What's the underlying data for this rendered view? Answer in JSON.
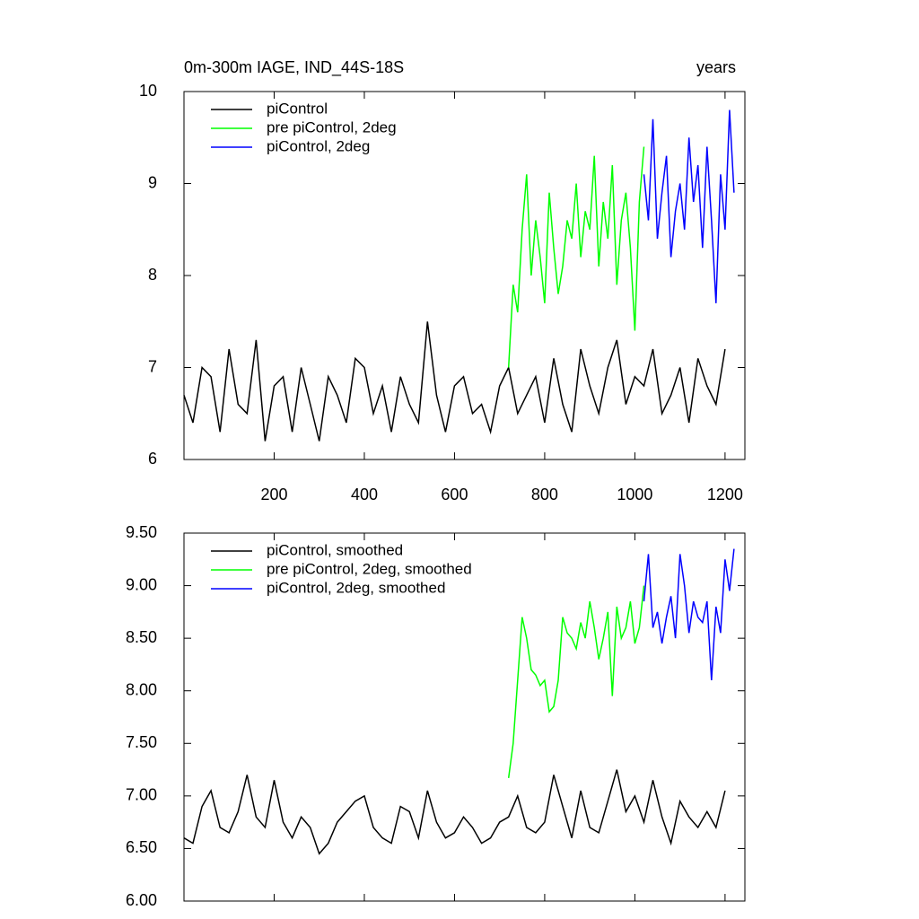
{
  "chart_data": [
    {
      "type": "line",
      "title": "0m-300m IAGE, IND_44S-18S",
      "right_title": "years",
      "xlim": [
        0,
        1244
      ],
      "xticks": [
        200,
        400,
        600,
        800,
        1000,
        1200
      ],
      "ylim": [
        6,
        10
      ],
      "yticks": [
        6,
        7,
        8,
        9,
        10
      ],
      "legend": "top-left",
      "series": [
        {
          "name": "piControl",
          "color": "#000000",
          "x": [
            0,
            20,
            40,
            60,
            80,
            100,
            120,
            140,
            160,
            180,
            200,
            220,
            240,
            260,
            280,
            300,
            320,
            340,
            360,
            380,
            400,
            420,
            440,
            460,
            480,
            500,
            520,
            540,
            560,
            580,
            600,
            620,
            640,
            660,
            680,
            700,
            720,
            740,
            760,
            780,
            800,
            820,
            840,
            860,
            880,
            900,
            920,
            940,
            960,
            980,
            1000,
            1020,
            1040,
            1060,
            1080,
            1100,
            1120,
            1140,
            1160,
            1180,
            1200
          ],
          "values": [
            6.7,
            6.4,
            7.0,
            6.9,
            6.3,
            7.2,
            6.6,
            6.5,
            7.3,
            6.2,
            6.8,
            6.9,
            6.3,
            7.0,
            6.6,
            6.2,
            6.9,
            6.7,
            6.4,
            7.1,
            7.0,
            6.5,
            6.8,
            6.3,
            6.9,
            6.6,
            6.4,
            7.5,
            6.7,
            6.3,
            6.8,
            6.9,
            6.5,
            6.6,
            6.3,
            6.8,
            7.0,
            6.5,
            6.7,
            6.9,
            6.4,
            7.1,
            6.6,
            6.3,
            7.2,
            6.8,
            6.5,
            7.0,
            7.3,
            6.6,
            6.9,
            6.8,
            7.2,
            6.5,
            6.7,
            7.0,
            6.4,
            7.1,
            6.8,
            6.6,
            7.2
          ]
        },
        {
          "name": "pre piControl, 2deg",
          "color": "#00ff00",
          "x": [
            720,
            730,
            740,
            750,
            760,
            770,
            780,
            790,
            800,
            810,
            820,
            830,
            840,
            850,
            860,
            870,
            880,
            890,
            900,
            910,
            920,
            930,
            940,
            950,
            960,
            970,
            980,
            990,
            1000,
            1010,
            1020
          ],
          "values": [
            7.0,
            7.9,
            7.6,
            8.5,
            9.1,
            8.0,
            8.6,
            8.2,
            7.7,
            8.9,
            8.3,
            7.8,
            8.1,
            8.6,
            8.4,
            9.0,
            8.2,
            8.7,
            8.5,
            9.3,
            8.1,
            8.8,
            8.4,
            9.2,
            7.9,
            8.6,
            8.9,
            8.3,
            7.4,
            8.8,
            9.4
          ]
        },
        {
          "name": "piControl, 2deg",
          "color": "#0000ff",
          "x": [
            1020,
            1030,
            1040,
            1050,
            1060,
            1070,
            1080,
            1090,
            1100,
            1110,
            1120,
            1130,
            1140,
            1150,
            1160,
            1170,
            1180,
            1190,
            1200,
            1210,
            1220
          ],
          "values": [
            9.1,
            8.6,
            9.7,
            8.4,
            8.9,
            9.3,
            8.2,
            8.7,
            9.0,
            8.5,
            9.5,
            8.8,
            9.2,
            8.3,
            9.4,
            8.6,
            7.7,
            9.1,
            8.5,
            9.8,
            8.9
          ]
        }
      ]
    },
    {
      "type": "line",
      "xlim": [
        0,
        1244
      ],
      "xticks": [
        200,
        400,
        600,
        800,
        1000,
        1200
      ],
      "ylim": [
        6,
        9.5
      ],
      "yticks": [
        {
          "value": 6,
          "label": "6.00"
        },
        {
          "value": 6.5,
          "label": "6.50"
        },
        {
          "value": 7,
          "label": "7.00"
        },
        {
          "value": 7.5,
          "label": "7.50"
        },
        {
          "value": 8,
          "label": "8.00"
        },
        {
          "value": 8.5,
          "label": "8.50"
        },
        {
          "value": 9,
          "label": "9.00"
        },
        {
          "value": 9.5,
          "label": "9.50"
        }
      ],
      "legend": "top-left",
      "series": [
        {
          "name": "piControl, smoothed",
          "color": "#000000",
          "x": [
            0,
            20,
            40,
            60,
            80,
            100,
            120,
            140,
            160,
            180,
            200,
            220,
            240,
            260,
            280,
            300,
            320,
            340,
            360,
            380,
            400,
            420,
            440,
            460,
            480,
            500,
            520,
            540,
            560,
            580,
            600,
            620,
            640,
            660,
            680,
            700,
            720,
            740,
            760,
            780,
            800,
            820,
            840,
            860,
            880,
            900,
            920,
            940,
            960,
            980,
            1000,
            1020,
            1040,
            1060,
            1080,
            1100,
            1120,
            1140,
            1160,
            1180,
            1200
          ],
          "values": [
            6.6,
            6.55,
            6.9,
            7.05,
            6.7,
            6.65,
            6.85,
            7.2,
            6.8,
            6.7,
            7.15,
            6.75,
            6.6,
            6.8,
            6.7,
            6.45,
            6.55,
            6.75,
            6.85,
            6.95,
            7.0,
            6.7,
            6.6,
            6.55,
            6.9,
            6.85,
            6.6,
            7.05,
            6.75,
            6.6,
            6.65,
            6.8,
            6.7,
            6.55,
            6.6,
            6.75,
            6.8,
            7.0,
            6.7,
            6.65,
            6.75,
            7.2,
            6.9,
            6.6,
            7.05,
            6.7,
            6.65,
            6.95,
            7.25,
            6.85,
            7.0,
            6.75,
            7.15,
            6.8,
            6.55,
            6.95,
            6.8,
            6.7,
            6.85,
            6.7,
            7.05
          ]
        },
        {
          "name": "pre piControl, 2deg, smoothed",
          "color": "#00ff00",
          "x": [
            720,
            730,
            740,
            750,
            760,
            770,
            780,
            790,
            800,
            810,
            820,
            830,
            840,
            850,
            860,
            870,
            880,
            890,
            900,
            910,
            920,
            930,
            940,
            950,
            960,
            970,
            980,
            990,
            1000,
            1010,
            1020
          ],
          "values": [
            7.17,
            7.5,
            8.1,
            8.7,
            8.5,
            8.2,
            8.15,
            8.05,
            8.1,
            7.8,
            7.85,
            8.1,
            8.7,
            8.55,
            8.5,
            8.4,
            8.65,
            8.5,
            8.85,
            8.6,
            8.3,
            8.5,
            8.75,
            7.95,
            8.8,
            8.5,
            8.6,
            8.85,
            8.45,
            8.6,
            9.0
          ]
        },
        {
          "name": "piControl, 2deg, smoothed",
          "color": "#0000ff",
          "x": [
            1020,
            1030,
            1040,
            1050,
            1060,
            1070,
            1080,
            1090,
            1100,
            1110,
            1120,
            1130,
            1140,
            1150,
            1160,
            1170,
            1180,
            1190,
            1200,
            1210,
            1220
          ],
          "values": [
            8.85,
            9.3,
            8.6,
            8.75,
            8.45,
            8.7,
            8.9,
            8.5,
            9.3,
            9.0,
            8.55,
            8.85,
            8.7,
            8.65,
            8.85,
            8.1,
            8.8,
            8.55,
            9.25,
            8.95,
            9.35
          ]
        }
      ]
    }
  ]
}
